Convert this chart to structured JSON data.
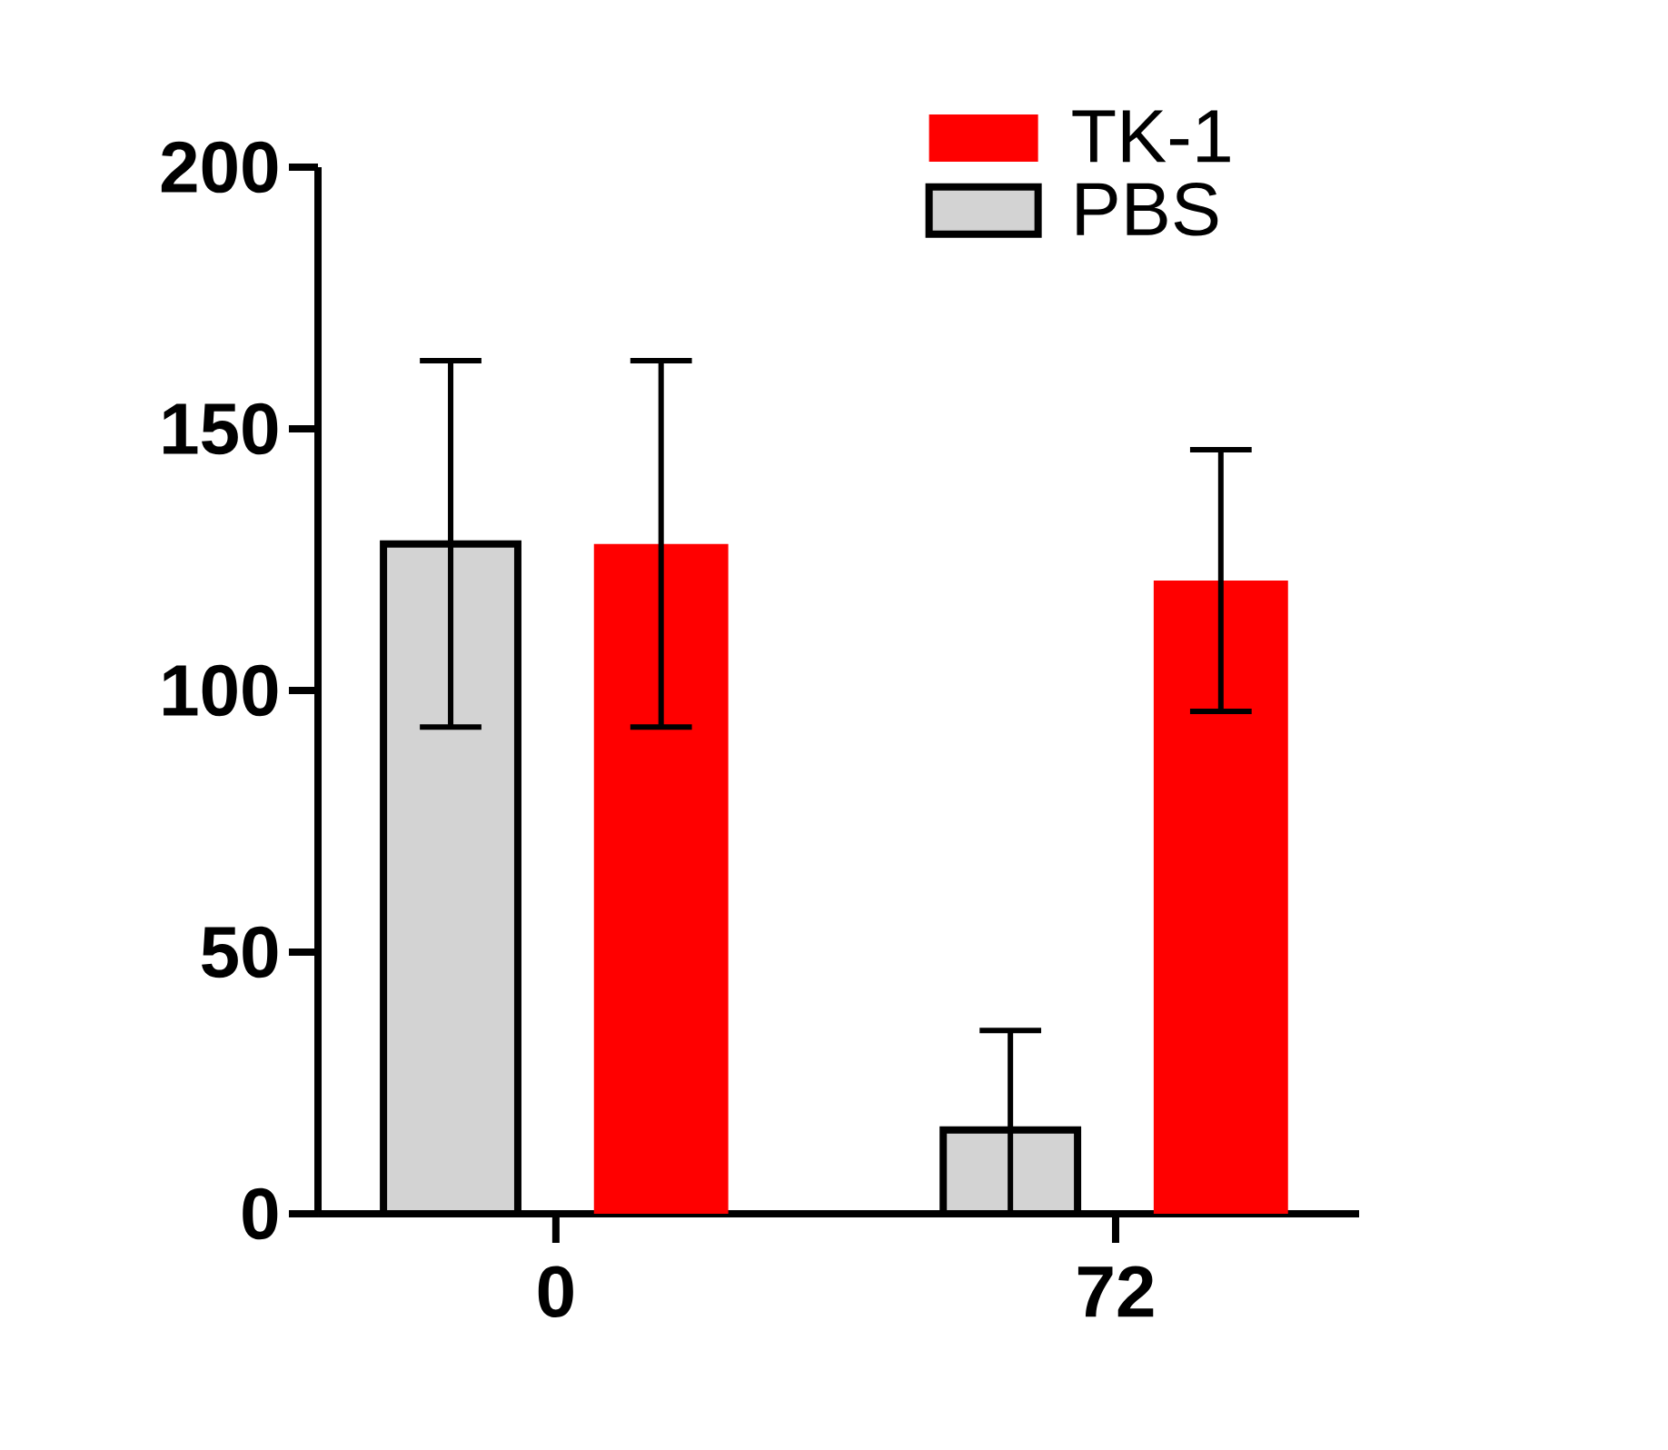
{
  "chart_data": {
    "type": "bar",
    "categories": [
      "0",
      "72"
    ],
    "series": [
      {
        "name": "PBS",
        "color": "#d3d3d3",
        "values": [
          128,
          16
        ],
        "errors": [
          35,
          [
            0,
            35
          ]
        ]
      },
      {
        "name": "TK-1",
        "color": "#ff0000",
        "values": [
          128,
          121
        ],
        "errors": [
          35,
          25
        ]
      }
    ],
    "ylim": [
      0,
      200
    ],
    "yticks": [
      0,
      50,
      100,
      150,
      200
    ],
    "legend": "top right"
  }
}
